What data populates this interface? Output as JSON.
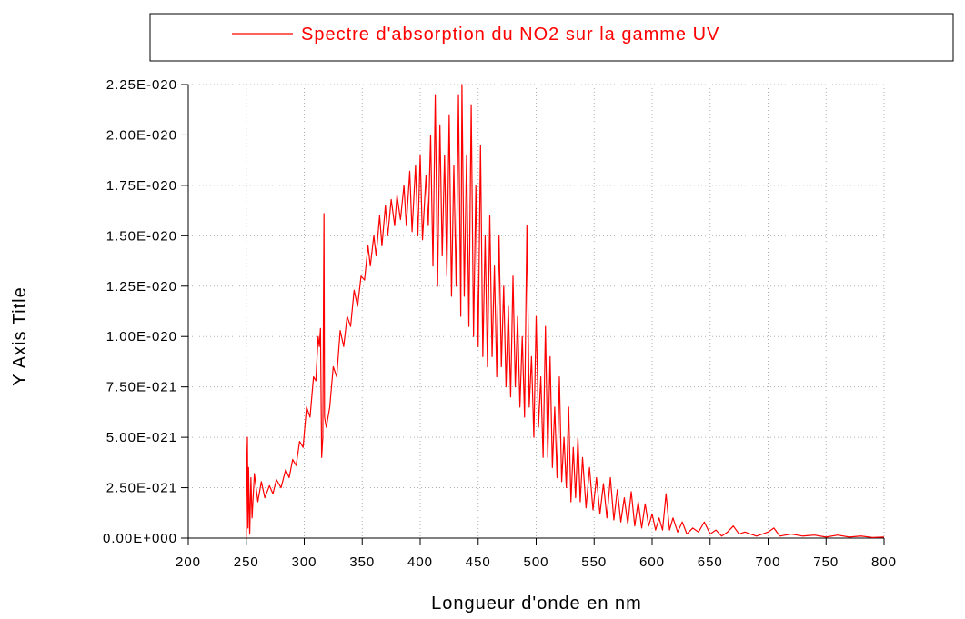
{
  "chart_data": {
    "type": "line",
    "legend_title": null,
    "xlabel": "Longueur d'onde en nm",
    "ylabel": "Y Axis Title",
    "xlim": [
      200,
      800
    ],
    "ylim": [
      0,
      2.25e-20
    ],
    "xticks": [
      200,
      250,
      300,
      350,
      400,
      450,
      500,
      550,
      600,
      650,
      700,
      750,
      800
    ],
    "yticks": [
      {
        "value": 0,
        "label": "0.00E+000"
      },
      {
        "value": 2.5e-21,
        "label": "2.50E-021"
      },
      {
        "value": 5e-21,
        "label": "5.00E-021"
      },
      {
        "value": 7.5e-21,
        "label": "7.50E-021"
      },
      {
        "value": 1e-20,
        "label": "1.00E-020"
      },
      {
        "value": 1.25e-20,
        "label": "1.25E-020"
      },
      {
        "value": 1.5e-20,
        "label": "1.50E-020"
      },
      {
        "value": 1.75e-20,
        "label": "1.75E-020"
      },
      {
        "value": 2e-20,
        "label": "2.00E-020"
      },
      {
        "value": 2.25e-20,
        "label": "2.25E-020"
      }
    ],
    "grid": true,
    "legend": "top",
    "x": [
      250,
      250.5,
      251,
      251.5,
      252,
      253,
      254,
      255,
      257,
      260,
      263,
      266,
      270,
      273,
      276,
      280,
      284,
      287,
      290,
      293,
      296,
      299,
      302,
      305,
      308,
      310,
      312,
      313,
      314,
      315,
      316,
      317,
      317.5,
      319,
      322,
      325,
      328,
      331,
      334,
      337,
      340,
      343,
      346,
      349,
      352,
      355,
      357,
      360,
      362,
      365,
      367,
      370,
      372,
      375,
      378,
      380,
      383,
      386,
      388,
      391,
      393,
      396,
      398,
      400,
      402,
      405,
      407,
      409,
      411,
      413,
      415,
      417,
      419,
      421,
      423,
      425,
      427,
      429,
      431,
      433,
      435,
      436,
      438,
      440,
      442,
      444,
      446,
      448,
      450,
      452,
      454,
      456,
      458,
      460,
      462,
      464,
      466,
      468,
      470,
      472,
      474,
      476,
      478,
      480,
      482,
      484,
      486,
      488,
      490,
      492,
      494,
      496,
      498,
      500,
      502,
      504,
      506,
      508,
      510,
      512,
      514,
      516,
      518,
      520,
      522,
      524,
      526,
      528,
      530,
      532,
      534,
      536,
      538,
      540,
      543,
      546,
      549,
      552,
      555,
      558,
      561,
      564,
      567,
      570,
      573,
      576,
      579,
      582,
      585,
      588,
      591,
      594,
      597,
      600,
      603,
      606,
      609,
      612,
      615,
      618,
      622,
      626,
      630,
      635,
      640,
      645,
      650,
      655,
      660,
      665,
      670,
      675,
      680,
      690,
      700,
      705,
      710,
      720,
      730,
      740,
      750,
      760,
      770,
      780,
      790,
      800
    ],
    "series": [
      {
        "name": "Spectre d'absorption du NO2 sur la gamme UV",
        "color": "#ff0000",
        "values": [
          0,
          3.8e-21,
          5e-21,
          5e-22,
          3.5e-21,
          2e-22,
          3e-21,
          1e-21,
          3.2e-21,
          1.8e-21,
          2.8e-21,
          2e-21,
          2.6e-21,
          2.2e-21,
          2.9e-21,
          2.5e-21,
          3.4e-21,
          3e-21,
          3.9e-21,
          3.6e-21,
          4.8e-21,
          4.5e-21,
          6.5e-21,
          6e-21,
          8e-21,
          7.8e-21,
          1e-20,
          9.5e-21,
          1.04e-20,
          4e-21,
          5e-21,
          1.61e-20,
          6e-21,
          5.5e-21,
          6.5e-21,
          8.5e-21,
          8e-21,
          1.03e-20,
          9.5e-21,
          1.1e-20,
          1.05e-20,
          1.23e-20,
          1.15e-20,
          1.3e-20,
          1.28e-20,
          1.45e-20,
          1.35e-20,
          1.5e-20,
          1.4e-20,
          1.6e-20,
          1.45e-20,
          1.65e-20,
          1.5e-20,
          1.68e-20,
          1.55e-20,
          1.7e-20,
          1.58e-20,
          1.75e-20,
          1.55e-20,
          1.82e-20,
          1.52e-20,
          1.85e-20,
          1.5e-20,
          1.9e-20,
          1.48e-20,
          1.8e-20,
          1.55e-20,
          2e-20,
          1.35e-20,
          2.2e-20,
          1.25e-20,
          2.05e-20,
          1.4e-20,
          1.9e-20,
          1.3e-20,
          2.1e-20,
          1.2e-20,
          1.85e-20,
          1.25e-20,
          2.2e-20,
          1.1e-20,
          2.25e-20,
          1.2e-20,
          1.9e-20,
          1.05e-20,
          2.15e-20,
          1e-20,
          1.75e-20,
          9.5e-21,
          1.95e-20,
          9e-21,
          1.5e-20,
          8.5e-21,
          1.6e-20,
          9e-21,
          1.35e-20,
          8e-21,
          1.5e-20,
          8.5e-21,
          1.25e-20,
          7.5e-21,
          1.15e-20,
          7e-21,
          1.3e-20,
          7.5e-21,
          1.1e-20,
          6.5e-21,
          1e-20,
          6e-21,
          1.55e-20,
          6.5e-21,
          9e-21,
          5e-21,
          1.1e-20,
          5.5e-21,
          8e-21,
          4e-21,
          1.05e-20,
          4e-21,
          9e-21,
          3.5e-21,
          6.5e-21,
          3e-21,
          8e-21,
          2.8e-21,
          5e-21,
          2.5e-21,
          6.5e-21,
          1.8e-21,
          4.5e-21,
          2e-21,
          5e-21,
          1.8e-21,
          4e-21,
          1.5e-21,
          3.5e-21,
          1.4e-21,
          3e-21,
          1.2e-21,
          2.7e-21,
          1e-21,
          3e-21,
          9e-22,
          2.4e-21,
          8e-22,
          2e-21,
          7e-22,
          2.3e-21,
          6e-22,
          1.8e-21,
          5e-22,
          1.7e-21,
          6e-22,
          1.2e-21,
          4e-22,
          1e-21,
          4e-22,
          2.2e-21,
          4e-22,
          1e-21,
          3e-22,
          8e-22,
          2e-22,
          5e-22,
          3e-22,
          8e-22,
          2e-22,
          4e-22,
          1e-22,
          3e-22,
          6e-22,
          2e-22,
          3e-22,
          1e-22,
          3e-22,
          5e-22,
          1e-22,
          2e-22,
          1e-22,
          1.5e-22,
          5e-23,
          1.5e-22,
          5e-23,
          1e-22,
          3e-23,
          5e-23
        ]
      }
    ]
  }
}
